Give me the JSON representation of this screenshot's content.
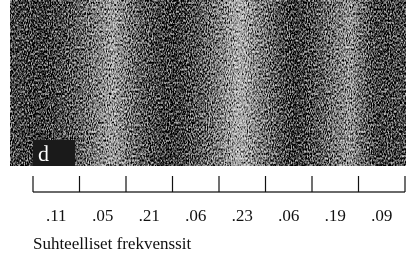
{
  "panel_label": "d",
  "frequencies": [
    ".11",
    ".05",
    ".21",
    ".06",
    ".23",
    ".06",
    ".19",
    ".09"
  ],
  "caption": "Suhteelliset frekvenssit"
}
